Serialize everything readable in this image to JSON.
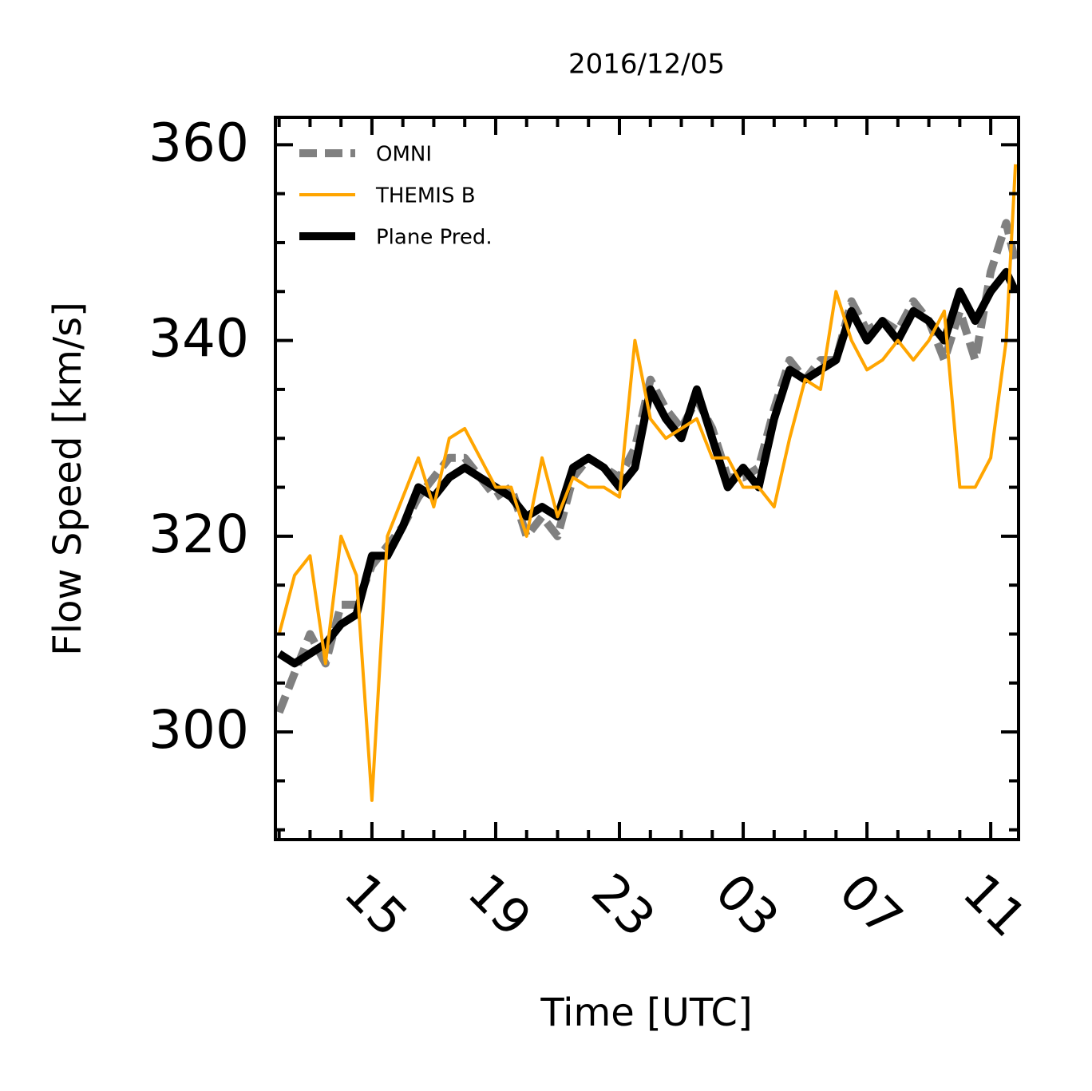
{
  "chart_data": {
    "type": "line",
    "title": "2016/12/05",
    "x_label": "Time [UTC]",
    "y_label": "Flow Speed [km/s]",
    "xlim": [
      11.88,
      35.9
    ],
    "ylim": [
      289,
      362.8
    ],
    "xticks": [
      15,
      19,
      23,
      {
        "value": 27,
        "label": "03"
      },
      {
        "value": 31,
        "label": "07"
      },
      {
        "value": 35,
        "label": "11"
      }
    ],
    "xminorticks": [
      12,
      13,
      14,
      16,
      17,
      18,
      20,
      21,
      22,
      24,
      25,
      26,
      28,
      29,
      30,
      32,
      33,
      34
    ],
    "yticks": [
      300,
      320,
      340,
      360
    ],
    "yminorticks": [
      290,
      295,
      305,
      310,
      315,
      325,
      330,
      335,
      345,
      350,
      355
    ],
    "legend": "upper left",
    "x": [
      12,
      12.5,
      13,
      13.5,
      14,
      14.5,
      15,
      15.5,
      16,
      16.5,
      17,
      17.5,
      18,
      18.5,
      19,
      19.5,
      20,
      20.5,
      21,
      21.5,
      22,
      22.5,
      23,
      23.5,
      24,
      24.5,
      25,
      25.5,
      26,
      26.5,
      27,
      27.5,
      28,
      28.5,
      29,
      29.5,
      30,
      30.5,
      31,
      31.5,
      32,
      32.5,
      33,
      33.5,
      34,
      34.5,
      35,
      35.5,
      35.8
    ],
    "series": [
      {
        "name": "OMNI",
        "color": "#808080",
        "linewidth": 10,
        "dashed": true,
        "values": [
          302,
          306,
          310,
          307,
          313,
          313,
          317,
          319,
          321,
          324,
          326,
          328,
          328,
          326,
          324,
          325,
          320,
          322,
          320,
          326,
          328,
          327,
          326,
          329,
          336,
          333,
          331,
          334,
          331,
          326,
          326,
          327,
          333,
          338,
          336,
          338,
          338,
          344,
          341,
          342,
          341,
          344,
          342,
          338,
          343,
          338,
          347,
          352,
          348
        ]
      },
      {
        "name": "THEMIS B",
        "color": "#ffa500",
        "linewidth": 4,
        "dashed": false,
        "values": [
          310,
          316,
          318,
          307,
          320,
          316,
          293,
          320,
          324,
          328,
          323,
          330,
          331,
          328,
          325,
          325,
          320,
          328,
          322,
          326,
          325,
          325,
          324,
          340,
          332,
          330,
          331,
          332,
          328,
          328,
          325,
          325,
          323,
          330,
          336,
          335,
          345,
          340,
          337,
          338,
          340,
          338,
          340,
          343,
          325,
          325,
          328,
          340,
          358
        ]
      },
      {
        "name": "Plane Pred.",
        "color": "#000000",
        "linewidth": 10,
        "dashed": false,
        "values": [
          308,
          307,
          308,
          309,
          311,
          312,
          318,
          318,
          321,
          325,
          324,
          326,
          327,
          326,
          325,
          324,
          322,
          323,
          322,
          327,
          328,
          327,
          325,
          327,
          335,
          332,
          330,
          335,
          330,
          325,
          327,
          325,
          332,
          337,
          336,
          337,
          338,
          343,
          340,
          342,
          340,
          343,
          342,
          340,
          345,
          342,
          345,
          347,
          345
        ]
      }
    ]
  }
}
